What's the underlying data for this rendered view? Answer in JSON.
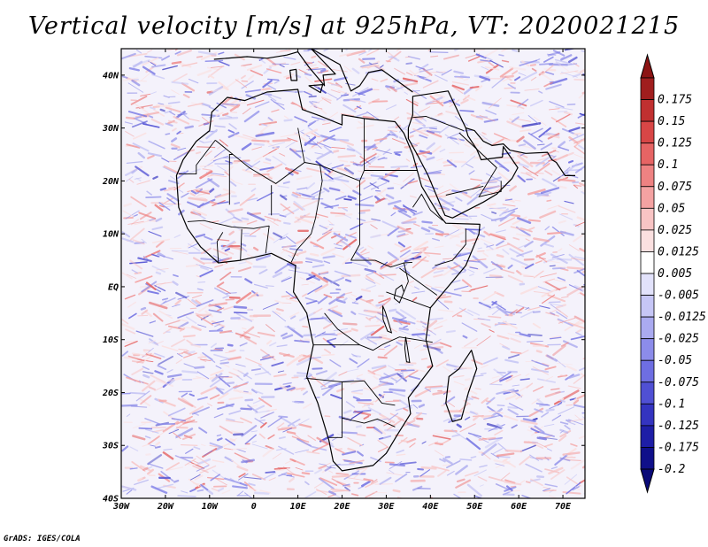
{
  "title": "Vertical velocity [m/s] at 925hPa, VT: 2020021215",
  "credit": "GrADS: IGES/COLA",
  "map": {
    "region": "Africa and Arabian Peninsula",
    "variable": "Vertical velocity",
    "units": "m/s",
    "level": "925hPa",
    "valid_time": "2020021215",
    "lon_range": [
      -30,
      75
    ],
    "lat_range": [
      -40,
      45
    ],
    "lon_ticks": [
      {
        "value": -30,
        "label": "30W"
      },
      {
        "value": -20,
        "label": "20W"
      },
      {
        "value": -10,
        "label": "10W"
      },
      {
        "value": 0,
        "label": "0"
      },
      {
        "value": 10,
        "label": "10E"
      },
      {
        "value": 20,
        "label": "20E"
      },
      {
        "value": 30,
        "label": "30E"
      },
      {
        "value": 40,
        "label": "40E"
      },
      {
        "value": 50,
        "label": "50E"
      },
      {
        "value": 60,
        "label": "60E"
      },
      {
        "value": 70,
        "label": "70E"
      }
    ],
    "lat_ticks": [
      {
        "value": 40,
        "label": "40N"
      },
      {
        "value": 30,
        "label": "30N"
      },
      {
        "value": 20,
        "label": "20N"
      },
      {
        "value": 10,
        "label": "10N"
      },
      {
        "value": 0,
        "label": "EQ"
      },
      {
        "value": -10,
        "label": "10S"
      },
      {
        "value": -20,
        "label": "20S"
      },
      {
        "value": -30,
        "label": "30S"
      },
      {
        "value": -40,
        "label": "40S"
      }
    ]
  },
  "colorbar": {
    "levels": [
      {
        "label": "0.175",
        "color": "#a01e1e"
      },
      {
        "label": "0.15",
        "color": "#c03030"
      },
      {
        "label": "0.125",
        "color": "#d84646"
      },
      {
        "label": "0.1",
        "color": "#e66464"
      },
      {
        "label": "0.075",
        "color": "#ee8282"
      },
      {
        "label": "0.05",
        "color": "#f4a2a2"
      },
      {
        "label": "0.025",
        "color": "#f8c4c4"
      },
      {
        "label": "0.0125",
        "color": "#fbe0e0"
      },
      {
        "label": "0.005",
        "color": "#ffffff"
      },
      {
        "label": "-0.005",
        "color": "#e2e2fb"
      },
      {
        "label": "-0.0125",
        "color": "#c6c6f6"
      },
      {
        "label": "-0.025",
        "color": "#aaaaf0"
      },
      {
        "label": "-0.05",
        "color": "#8c8cea"
      },
      {
        "label": "-0.075",
        "color": "#6e6ee2"
      },
      {
        "label": "-0.1",
        "color": "#5050d4"
      },
      {
        "label": "-0.125",
        "color": "#3434c0"
      },
      {
        "label": "-0.175",
        "color": "#1e1ea6"
      },
      {
        "label": "-0.2",
        "color": "#10108a"
      }
    ],
    "top_color": "#8c1414",
    "bottom_color": "#0a0a78"
  }
}
